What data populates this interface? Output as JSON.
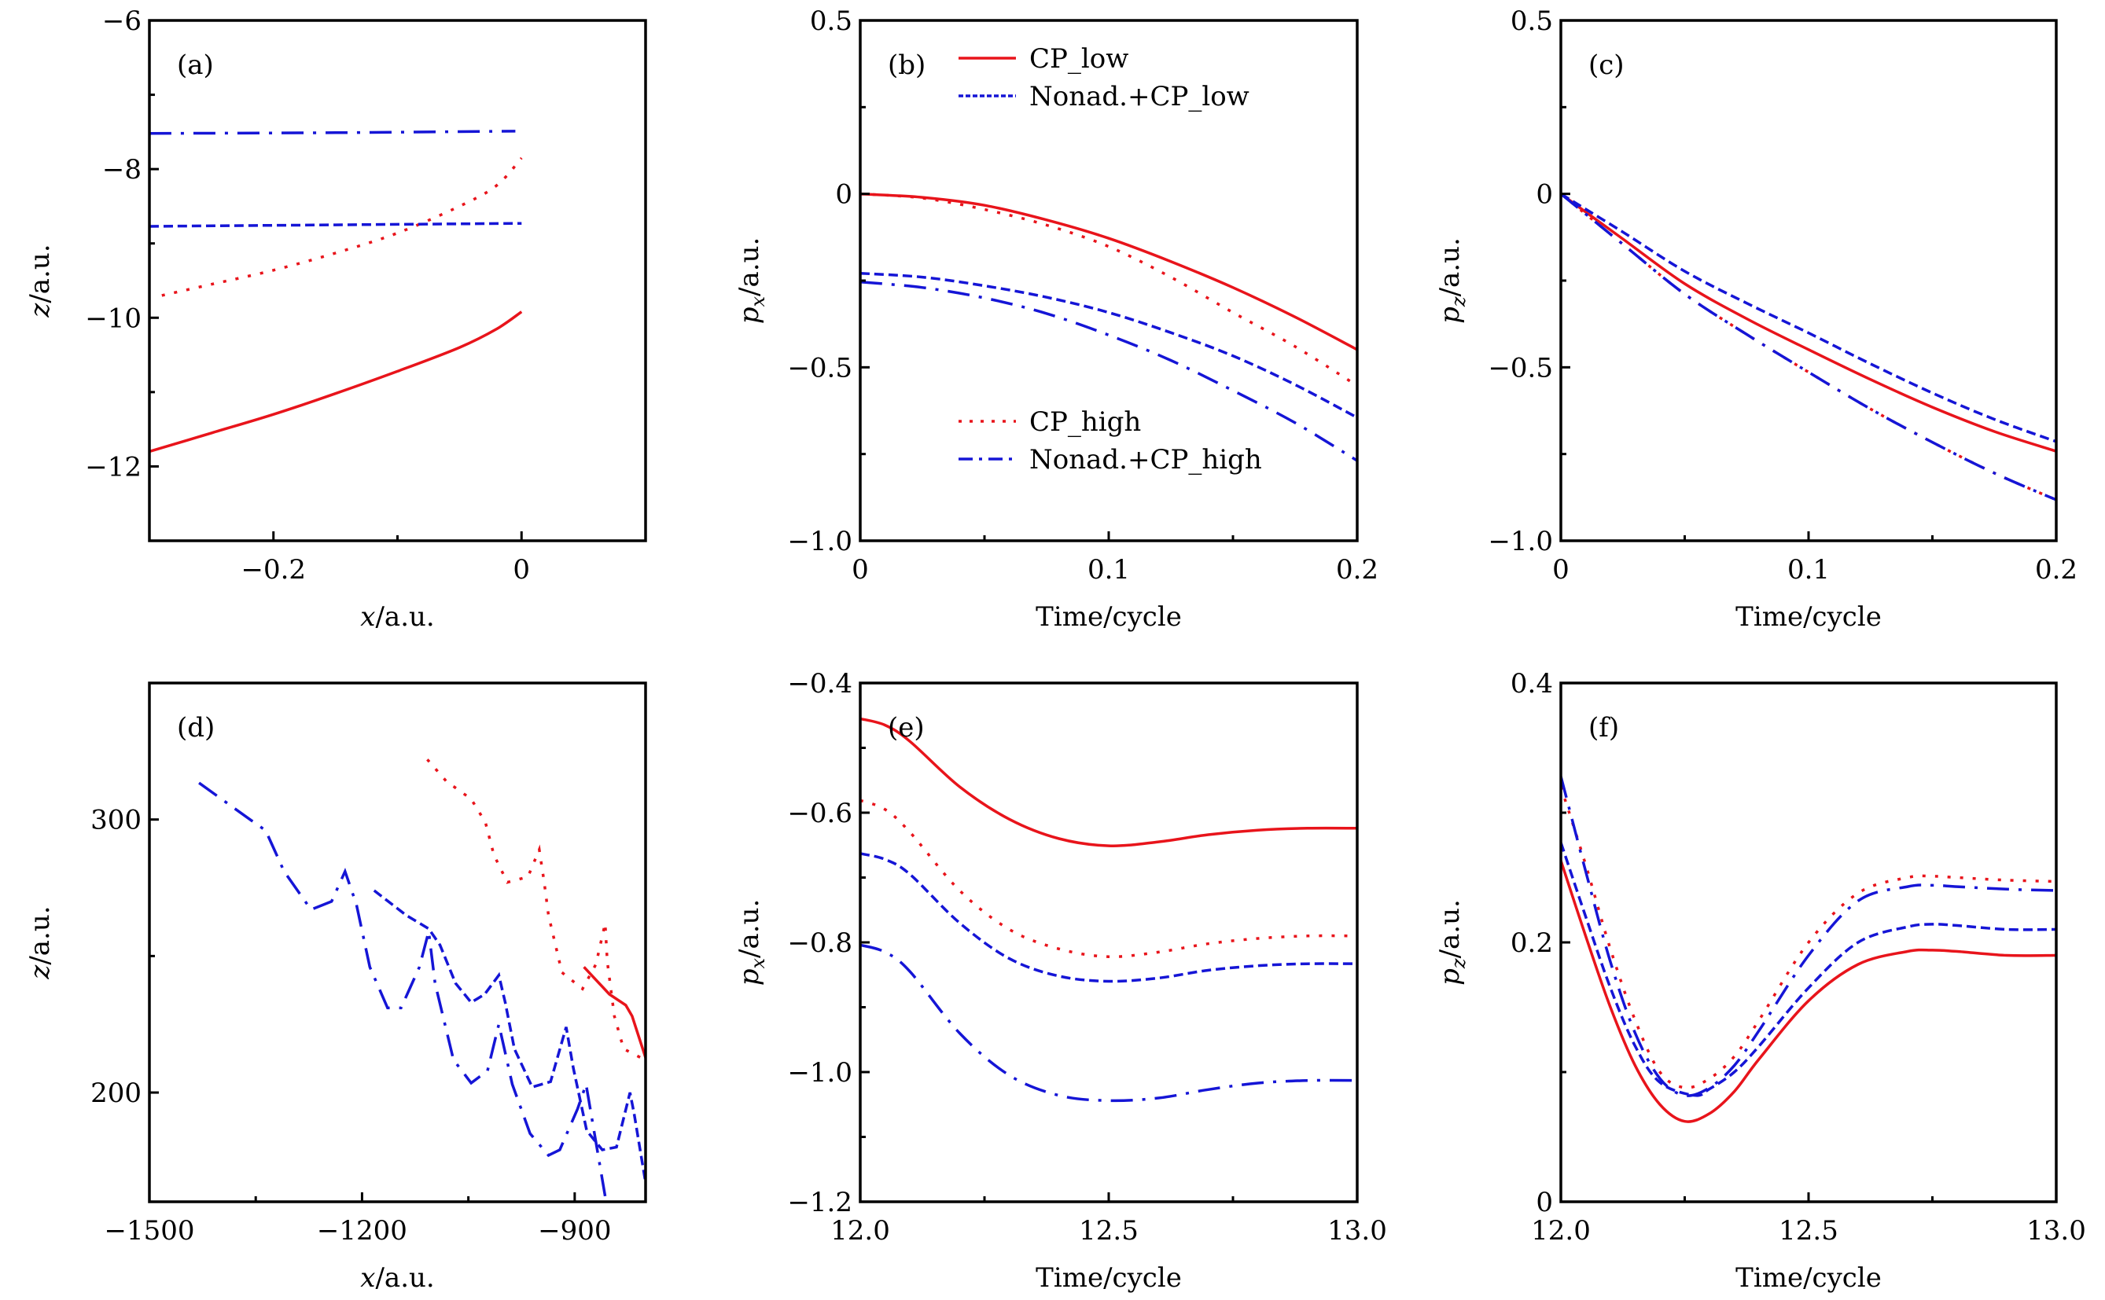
{
  "figure": {
    "styles": {
      "CP_low": {
        "color": "#e8141b",
        "dash": "solid"
      },
      "Nonad.+CP_low": {
        "color": "#1515d6",
        "dash": "dashed"
      },
      "CP_high": {
        "color": "#e8141b",
        "dash": "dotted"
      },
      "Nonad.+CP_high": {
        "color": "#1515d6",
        "dash": "dashdot"
      }
    },
    "legend": {
      "panel": "b",
      "entries": [
        "CP_low",
        "Nonad.+CP_low",
        "CP_high",
        "Nonad.+CP_high"
      ]
    }
  },
  "chart_data": [
    {
      "id": "a",
      "type": "line",
      "panel_label": "(a)",
      "xlabel": "x/a.u.",
      "ylabel": "z/a.u.",
      "xlim": [
        -0.3,
        0.1
      ],
      "ylim": [
        -13,
        -6
      ],
      "xticks": [
        -0.2,
        0
      ],
      "xtick_labels": [
        "−0.2",
        "0"
      ],
      "xminor": [
        -0.1
      ],
      "yticks": [
        -12,
        -10,
        -8,
        -6
      ],
      "ytick_labels": [
        "−12",
        "−10",
        "−8",
        "−6"
      ],
      "yminor": [
        -11,
        -9,
        -7
      ],
      "series": [
        {
          "name": "CP_low",
          "x": [
            -0.3,
            -0.25,
            -0.2,
            -0.15,
            -0.1,
            -0.05,
            -0.02,
            0
          ],
          "y": [
            -11.8,
            -11.55,
            -11.3,
            -11.02,
            -10.72,
            -10.4,
            -10.15,
            -9.92
          ]
        },
        {
          "name": "CP_high",
          "x": [
            -0.29,
            -0.25,
            -0.2,
            -0.15,
            -0.1,
            -0.05,
            -0.02,
            0
          ],
          "y": [
            -9.7,
            -9.55,
            -9.36,
            -9.13,
            -8.86,
            -8.5,
            -8.22,
            -7.85
          ]
        },
        {
          "name": "Nonad.+CP_low",
          "x": [
            -0.3,
            -0.15,
            0
          ],
          "y": [
            -8.77,
            -8.75,
            -8.73
          ]
        },
        {
          "name": "Nonad.+CP_high",
          "x": [
            -0.3,
            -0.15,
            -0.005
          ],
          "y": [
            -7.52,
            -7.51,
            -7.49
          ]
        }
      ]
    },
    {
      "id": "b",
      "type": "line",
      "panel_label": "(b)",
      "xlabel": "Time/cycle",
      "ylabel": "p_x/a.u.",
      "xlim": [
        0,
        0.2
      ],
      "ylim": [
        -1.0,
        0.5
      ],
      "xticks": [
        0,
        0.1,
        0.2
      ],
      "xtick_labels": [
        "0",
        "0.1",
        "0.2"
      ],
      "xminor": [
        0.05,
        0.15
      ],
      "yticks": [
        -1.0,
        -0.5,
        0,
        0.5
      ],
      "ytick_labels": [
        "−1.0",
        "−0.5",
        "0",
        "0.5"
      ],
      "yminor": [
        -0.75,
        -0.25,
        0.25
      ],
      "series": [
        {
          "name": "CP_low",
          "x": [
            0,
            0.025,
            0.05,
            0.075,
            0.1,
            0.125,
            0.15,
            0.175,
            0.2
          ],
          "y": [
            0,
            -0.01,
            -0.033,
            -0.075,
            -0.128,
            -0.195,
            -0.27,
            -0.355,
            -0.449
          ]
        },
        {
          "name": "CP_high",
          "x": [
            0,
            0.025,
            0.05,
            0.075,
            0.1,
            0.125,
            0.15,
            0.175,
            0.2
          ],
          "y": [
            0,
            -0.012,
            -0.045,
            -0.09,
            -0.152,
            -0.24,
            -0.342,
            -0.44,
            -0.553
          ]
        },
        {
          "name": "Nonad.+CP_low",
          "x": [
            0,
            0.025,
            0.05,
            0.075,
            0.1,
            0.125,
            0.15,
            0.175,
            0.2
          ],
          "y": [
            -0.229,
            -0.24,
            -0.265,
            -0.298,
            -0.342,
            -0.4,
            -0.467,
            -0.55,
            -0.645
          ]
        },
        {
          "name": "Nonad.+CP_high",
          "x": [
            0,
            0.025,
            0.05,
            0.075,
            0.1,
            0.125,
            0.15,
            0.175,
            0.2
          ],
          "y": [
            -0.254,
            -0.27,
            -0.3,
            -0.345,
            -0.407,
            -0.48,
            -0.567,
            -0.66,
            -0.769
          ]
        }
      ]
    },
    {
      "id": "c",
      "type": "line",
      "panel_label": "(c)",
      "xlabel": "Time/cycle",
      "ylabel": "p_z/a.u.",
      "xlim": [
        0,
        0.2
      ],
      "ylim": [
        -1.0,
        0.5
      ],
      "xticks": [
        0,
        0.1,
        0.2
      ],
      "xtick_labels": [
        "0",
        "0.1",
        "0.2"
      ],
      "xminor": [
        0.05,
        0.15
      ],
      "yticks": [
        -1.0,
        -0.5,
        0,
        0.5
      ],
      "ytick_labels": [
        "−1.0",
        "−0.5",
        "0",
        "0.5"
      ],
      "yminor": [
        -0.75,
        -0.25,
        0.25
      ],
      "series": [
        {
          "name": "CP_low",
          "x": [
            0,
            0.025,
            0.05,
            0.075,
            0.1,
            0.125,
            0.15,
            0.175,
            0.2
          ],
          "y": [
            0,
            -0.13,
            -0.259,
            -0.36,
            -0.449,
            -0.535,
            -0.615,
            -0.685,
            -0.742
          ]
        },
        {
          "name": "Nonad.+CP_low",
          "x": [
            0,
            0.025,
            0.05,
            0.075,
            0.1,
            0.125,
            0.15,
            0.175,
            0.2
          ],
          "y": [
            0,
            -0.11,
            -0.223,
            -0.315,
            -0.401,
            -0.49,
            -0.574,
            -0.65,
            -0.714
          ]
        },
        {
          "name": "CP_high",
          "x": [
            0,
            0.025,
            0.05,
            0.075,
            0.1,
            0.125,
            0.15,
            0.175,
            0.2
          ],
          "y": [
            0,
            -0.145,
            -0.289,
            -0.405,
            -0.514,
            -0.62,
            -0.716,
            -0.805,
            -0.882
          ]
        },
        {
          "name": "Nonad.+CP_high",
          "x": [
            0,
            0.025,
            0.05,
            0.075,
            0.1,
            0.125,
            0.15,
            0.175,
            0.2
          ],
          "y": [
            0,
            -0.145,
            -0.289,
            -0.405,
            -0.514,
            -0.62,
            -0.716,
            -0.805,
            -0.882
          ]
        }
      ]
    },
    {
      "id": "d",
      "type": "line",
      "panel_label": "(d)",
      "xlabel": "x/a.u.",
      "ylabel": "z/a.u.",
      "xlim": [
        -1500,
        -800
      ],
      "ylim": [
        160,
        350
      ],
      "xticks": [
        -1500,
        -1200,
        -900
      ],
      "xtick_labels": [
        "−1500",
        "−1200",
        "−900"
      ],
      "xminor": [
        -1350,
        -1050
      ],
      "yticks": [
        200,
        300
      ],
      "ytick_labels": [
        "200",
        "300"
      ],
      "yminor": [
        250
      ],
      "series": [
        {
          "name": "CP_low",
          "x": [
            -887,
            -851,
            -828,
            -819,
            -799
          ],
          "y": [
            246,
            236,
            232,
            228,
            212
          ]
        },
        {
          "name": "CP_high",
          "x": [
            -1108,
            -1081,
            -1046,
            -1026,
            -1014,
            -995,
            -966,
            -950,
            -943,
            -937,
            -918,
            -889,
            -870,
            -857,
            -854,
            -844,
            -831,
            -801
          ],
          "y": [
            322,
            314,
            307.5,
            299,
            287,
            277,
            279,
            289,
            277,
            265,
            244,
            238,
            247,
            262,
            248,
            228,
            216,
            212
          ]
        },
        {
          "name": "Nonad.+CP_low",
          "x": [
            -1183,
            -1138,
            -1106,
            -1090,
            -1068,
            -1046,
            -1027,
            -1007,
            -998,
            -985,
            -960,
            -934,
            -912,
            -902,
            -883,
            -861,
            -841,
            -822,
            -816,
            -800
          ],
          "y": [
            274,
            265,
            260,
            254,
            240,
            233,
            236,
            243,
            233,
            216,
            202,
            204,
            224,
            209,
            186,
            179,
            180,
            200,
            192,
            167
          ]
        },
        {
          "name": "Nonad.+CP_high",
          "x": [
            -1430,
            -1358,
            -1336,
            -1310,
            -1272,
            -1243,
            -1224,
            -1208,
            -1189,
            -1164,
            -1145,
            -1119,
            -1106,
            -1097,
            -1071,
            -1046,
            -1023,
            -1007,
            -988,
            -963,
            -937,
            -921,
            -896,
            -884,
            -880,
            -857
          ],
          "y": [
            313.4,
            300,
            296,
            281,
            267,
            270,
            281,
            269,
            246,
            231,
            231,
            246,
            259,
            240,
            212,
            203.5,
            208,
            225,
            203,
            185,
            177,
            179,
            194,
            203,
            197,
            162
          ]
        }
      ]
    },
    {
      "id": "e",
      "type": "line",
      "panel_label": "(e)",
      "xlabel": "Time/cycle",
      "ylabel": "p_x/a.u.",
      "xlim": [
        12.0,
        13.0
      ],
      "ylim": [
        -1.2,
        -0.4
      ],
      "xticks": [
        12.0,
        12.5,
        13.0
      ],
      "xtick_labels": [
        "12.0",
        "12.5",
        "13.0"
      ],
      "xminor": [
        12.25,
        12.75
      ],
      "yticks": [
        -1.2,
        -1.0,
        -0.8,
        -0.6,
        -0.4
      ],
      "ytick_labels": [
        "−1.2",
        "−1.0",
        "−0.8",
        "−0.6",
        "−0.4"
      ],
      "yminor": [
        -1.1,
        -0.9,
        -0.7,
        -0.5
      ],
      "series": [
        {
          "name": "CP_low",
          "x": [
            12.0,
            12.05,
            12.1,
            12.2,
            12.3,
            12.4,
            12.5,
            12.6,
            12.7,
            12.8,
            12.9,
            13.0
          ],
          "y": [
            -0.455,
            -0.465,
            -0.49,
            -0.56,
            -0.61,
            -0.64,
            -0.651,
            -0.645,
            -0.634,
            -0.627,
            -0.624,
            -0.624
          ]
        },
        {
          "name": "CP_high",
          "x": [
            12.0,
            12.05,
            12.1,
            12.2,
            12.3,
            12.4,
            12.5,
            12.6,
            12.7,
            12.8,
            12.9,
            13.0
          ],
          "y": [
            -0.581,
            -0.595,
            -0.63,
            -0.72,
            -0.78,
            -0.81,
            -0.822,
            -0.815,
            -0.802,
            -0.794,
            -0.79,
            -0.79
          ]
        },
        {
          "name": "Nonad.+CP_low",
          "x": [
            12.0,
            12.05,
            12.1,
            12.2,
            12.3,
            12.4,
            12.5,
            12.6,
            12.7,
            12.8,
            12.9,
            13.0
          ],
          "y": [
            -0.663,
            -0.672,
            -0.695,
            -0.77,
            -0.825,
            -0.852,
            -0.86,
            -0.855,
            -0.843,
            -0.836,
            -0.833,
            -0.833
          ]
        },
        {
          "name": "Nonad.+CP_high",
          "x": [
            12.0,
            12.05,
            12.1,
            12.2,
            12.3,
            12.4,
            12.5,
            12.6,
            12.7,
            12.8,
            12.9,
            13.0
          ],
          "y": [
            -0.804,
            -0.815,
            -0.845,
            -0.94,
            -1.005,
            -1.036,
            -1.044,
            -1.04,
            -1.027,
            -1.017,
            -1.013,
            -1.013
          ]
        }
      ]
    },
    {
      "id": "f",
      "type": "line",
      "panel_label": "(f)",
      "xlabel": "Time/cycle",
      "ylabel": "p_z/a.u.",
      "xlim": [
        12.0,
        13.0
      ],
      "ylim": [
        0,
        0.4
      ],
      "xticks": [
        12.0,
        12.5,
        13.0
      ],
      "xtick_labels": [
        "12.0",
        "12.5",
        "13.0"
      ],
      "xminor": [
        12.25,
        12.75
      ],
      "yticks": [
        0,
        0.2,
        0.4
      ],
      "ytick_labels": [
        "0",
        "0.2",
        "0.4"
      ],
      "yminor": [
        0.1,
        0.3
      ],
      "series": [
        {
          "name": "CP_low",
          "x": [
            12.0,
            12.05,
            12.1,
            12.15,
            12.2,
            12.25,
            12.3,
            12.35,
            12.4,
            12.5,
            12.6,
            12.7,
            12.75,
            12.8,
            12.9,
            13.0
          ],
          "y": [
            0.263,
            0.205,
            0.15,
            0.105,
            0.075,
            0.062,
            0.068,
            0.085,
            0.11,
            0.155,
            0.183,
            0.193,
            0.194,
            0.193,
            0.19,
            0.19
          ]
        },
        {
          "name": "Nonad.+CP_low",
          "x": [
            12.0,
            12.05,
            12.1,
            12.15,
            12.2,
            12.27,
            12.3,
            12.35,
            12.4,
            12.5,
            12.6,
            12.7,
            12.75,
            12.8,
            12.9,
            13.0
          ],
          "y": [
            0.277,
            0.22,
            0.165,
            0.12,
            0.092,
            0.082,
            0.087,
            0.1,
            0.12,
            0.165,
            0.2,
            0.212,
            0.214,
            0.213,
            0.21,
            0.21
          ]
        },
        {
          "name": "CP_high",
          "x": [
            12.0,
            12.05,
            12.1,
            12.15,
            12.2,
            12.25,
            12.3,
            12.35,
            12.4,
            12.5,
            12.6,
            12.7,
            12.75,
            12.8,
            12.9,
            13.0
          ],
          "y": [
            0.32,
            0.26,
            0.195,
            0.14,
            0.1,
            0.088,
            0.095,
            0.112,
            0.14,
            0.2,
            0.238,
            0.25,
            0.251,
            0.25,
            0.248,
            0.247
          ]
        },
        {
          "name": "Nonad.+CP_high",
          "x": [
            12.0,
            12.05,
            12.1,
            12.15,
            12.2,
            12.25,
            12.3,
            12.35,
            12.4,
            12.5,
            12.6,
            12.7,
            12.75,
            12.8,
            12.9,
            13.0
          ],
          "y": [
            0.328,
            0.255,
            0.185,
            0.13,
            0.095,
            0.082,
            0.088,
            0.105,
            0.132,
            0.19,
            0.232,
            0.243,
            0.244,
            0.243,
            0.241,
            0.24
          ]
        }
      ]
    }
  ]
}
